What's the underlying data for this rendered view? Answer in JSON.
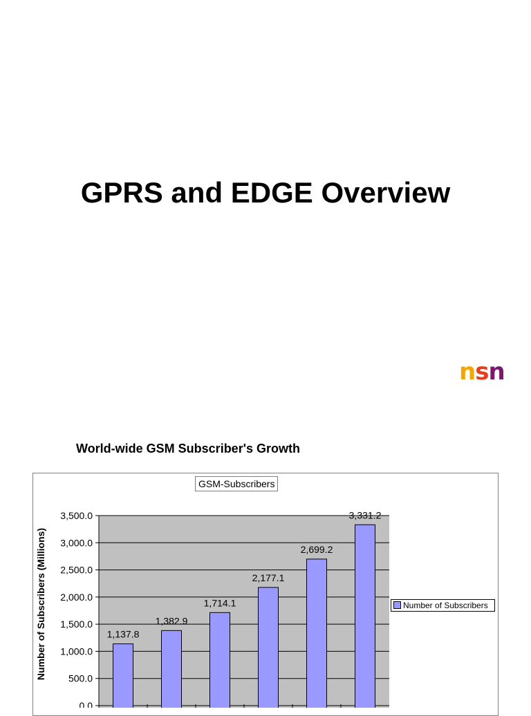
{
  "slide": {
    "title": "GPRS and EDGE Overview",
    "logo": {
      "letters": [
        "n",
        "s",
        "n"
      ],
      "colors": [
        "#f5a500",
        "#e2401e",
        "#7a1a6e"
      ]
    }
  },
  "chart_heading": "World-wide GSM Subscriber's Growth",
  "chart_data": {
    "type": "bar",
    "title": "GSM-Subscribers",
    "ylabel": "Number of Subscribers (Millions)",
    "xlabel": "",
    "categories": [
      "",
      "",
      "",
      "",
      "",
      ""
    ],
    "series": [
      {
        "name": "Number of Subscribers",
        "values": [
          1137.8,
          1382.9,
          1714.1,
          2177.1,
          2699.2,
          3331.2
        ],
        "color": "#9999ff"
      }
    ],
    "value_labels": [
      "1,137.8",
      "1,382.9",
      "1,714.1",
      "2,177.1",
      "2,699.2",
      "3,331.2"
    ],
    "yticks": [
      0,
      500,
      1000,
      1500,
      2000,
      2500,
      3000,
      3500
    ],
    "ytick_labels": [
      "0.0",
      "500.0",
      "1,000.0",
      "1,500.0",
      "2,000.0",
      "2,500.0",
      "3,000.0",
      "3,500.0"
    ],
    "ylim": [
      0,
      3500
    ],
    "grid": true,
    "plot_background": "#c0c0c0",
    "legend_position": "right"
  }
}
